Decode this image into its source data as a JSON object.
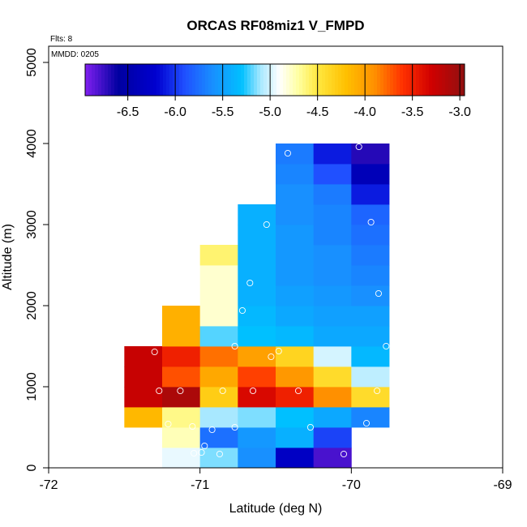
{
  "chart_data": {
    "type": "heatmap",
    "title": "ORCAS RF08miz1 V_FMPD",
    "annotations": {
      "flights": "Flts: 8",
      "date": "MMDD: 0205"
    },
    "xlabel": "Latitude (deg N)",
    "ylabel": "Altitude (m)",
    "xlim": [
      -72,
      -69
    ],
    "ylim": [
      0,
      5200
    ],
    "xticks": [
      -72,
      -71,
      -70,
      -69
    ],
    "xtick_labels": [
      "-72",
      "-71",
      "-70",
      "-69"
    ],
    "yticks": [
      0,
      1000,
      2000,
      3000,
      4000,
      5000
    ],
    "ytick_labels": [
      "0",
      "1000",
      "2000",
      "3000",
      "4000",
      "5000"
    ],
    "colorbar": {
      "range": [
        -6.95,
        -2.95
      ],
      "ticks": [
        -6.5,
        -6.0,
        -5.5,
        -5.0,
        -4.5,
        -4.0,
        -3.5,
        -3.0
      ],
      "tick_labels": [
        "-6.5",
        "-6.0",
        "-5.5",
        "-5.0",
        "-4.5",
        "-4.0",
        "-3.5",
        "-3.0"
      ],
      "stops": [
        [
          -6.95,
          "#8020f0"
        ],
        [
          -6.6,
          "#0000a0"
        ],
        [
          -6.2,
          "#0000d0"
        ],
        [
          -5.9,
          "#2050ff"
        ],
        [
          -5.6,
          "#1890ff"
        ],
        [
          -5.3,
          "#00c0ff"
        ],
        [
          -5.1,
          "#a8e8ff"
        ],
        [
          -4.9,
          "#ffffff"
        ],
        [
          -4.7,
          "#ffffa0"
        ],
        [
          -4.5,
          "#ffe840"
        ],
        [
          -4.2,
          "#ffc000"
        ],
        [
          -3.9,
          "#ff9000"
        ],
        [
          -3.6,
          "#ff3000"
        ],
        [
          -3.3,
          "#d00000"
        ],
        [
          -2.95,
          "#901010"
        ]
      ]
    },
    "x_bin_width": 0.25,
    "y_bin_height": 250,
    "cells": [
      {
        "lat": -71.125,
        "alt": 125,
        "value": -4.95
      },
      {
        "lat": -70.875,
        "alt": 125,
        "value": -5.15
      },
      {
        "lat": -70.625,
        "alt": 125,
        "value": -5.6
      },
      {
        "lat": -70.375,
        "alt": 125,
        "value": -6.3
      },
      {
        "lat": -70.125,
        "alt": 125,
        "value": -6.8
      },
      {
        "lat": -71.125,
        "alt": 375,
        "value": -4.75
      },
      {
        "lat": -70.875,
        "alt": 375,
        "value": -5.75
      },
      {
        "lat": -70.625,
        "alt": 375,
        "value": -5.55
      },
      {
        "lat": -70.375,
        "alt": 375,
        "value": -5.4
      },
      {
        "lat": -70.125,
        "alt": 375,
        "value": -5.95
      },
      {
        "lat": -71.375,
        "alt": 625,
        "value": -4.15
      },
      {
        "lat": -71.125,
        "alt": 625,
        "value": -4.65
      },
      {
        "lat": -70.875,
        "alt": 625,
        "value": -5.1
      },
      {
        "lat": -70.625,
        "alt": 625,
        "value": -5.15
      },
      {
        "lat": -70.375,
        "alt": 625,
        "value": -5.3
      },
      {
        "lat": -70.125,
        "alt": 625,
        "value": -5.45
      },
      {
        "lat": -69.875,
        "alt": 625,
        "value": -5.65
      },
      {
        "lat": -71.375,
        "alt": 875,
        "value": -3.25
      },
      {
        "lat": -71.125,
        "alt": 875,
        "value": -3.1
      },
      {
        "lat": -70.875,
        "alt": 875,
        "value": -4.3
      },
      {
        "lat": -70.625,
        "alt": 875,
        "value": -3.35
      },
      {
        "lat": -70.375,
        "alt": 875,
        "value": -3.5
      },
      {
        "lat": -70.125,
        "alt": 875,
        "value": -3.9
      },
      {
        "lat": -69.875,
        "alt": 875,
        "value": -4.4
      },
      {
        "lat": -71.375,
        "alt": 1125,
        "value": -3.25
      },
      {
        "lat": -71.125,
        "alt": 1125,
        "value": -3.7
      },
      {
        "lat": -70.875,
        "alt": 1125,
        "value": -4.05
      },
      {
        "lat": -70.625,
        "alt": 1125,
        "value": -3.65
      },
      {
        "lat": -70.375,
        "alt": 1125,
        "value": -3.95
      },
      {
        "lat": -70.125,
        "alt": 1125,
        "value": -4.4
      },
      {
        "lat": -69.875,
        "alt": 1125,
        "value": -5.05
      },
      {
        "lat": -71.375,
        "alt": 1375,
        "value": -3.25
      },
      {
        "lat": -71.125,
        "alt": 1375,
        "value": -3.5
      },
      {
        "lat": -70.875,
        "alt": 1375,
        "value": -3.8
      },
      {
        "lat": -70.625,
        "alt": 1375,
        "value": -4.0
      },
      {
        "lat": -70.375,
        "alt": 1375,
        "value": -4.35
      },
      {
        "lat": -70.125,
        "alt": 1375,
        "value": -5.0
      },
      {
        "lat": -69.875,
        "alt": 1375,
        "value": -5.35
      },
      {
        "lat": -71.125,
        "alt": 1625,
        "value": -4.1
      },
      {
        "lat": -70.875,
        "alt": 1625,
        "value": -5.2
      },
      {
        "lat": -70.625,
        "alt": 1625,
        "value": -5.3
      },
      {
        "lat": -70.375,
        "alt": 1625,
        "value": -5.35
      },
      {
        "lat": -70.125,
        "alt": 1625,
        "value": -5.45
      },
      {
        "lat": -69.875,
        "alt": 1625,
        "value": -5.45
      },
      {
        "lat": -71.125,
        "alt": 1875,
        "value": -4.1
      },
      {
        "lat": -70.875,
        "alt": 1875,
        "value": -4.8
      },
      {
        "lat": -70.625,
        "alt": 1875,
        "value": -5.35
      },
      {
        "lat": -70.375,
        "alt": 1875,
        "value": -5.45
      },
      {
        "lat": -70.125,
        "alt": 1875,
        "value": -5.5
      },
      {
        "lat": -69.875,
        "alt": 1875,
        "value": -5.5
      },
      {
        "lat": -70.875,
        "alt": 2125,
        "value": -4.8
      },
      {
        "lat": -70.625,
        "alt": 2125,
        "value": -5.4
      },
      {
        "lat": -70.375,
        "alt": 2125,
        "value": -5.5
      },
      {
        "lat": -70.125,
        "alt": 2125,
        "value": -5.55
      },
      {
        "lat": -69.875,
        "alt": 2125,
        "value": -5.6
      },
      {
        "lat": -70.875,
        "alt": 2375,
        "value": -4.8
      },
      {
        "lat": -70.625,
        "alt": 2375,
        "value": -5.4
      },
      {
        "lat": -70.375,
        "alt": 2375,
        "value": -5.55
      },
      {
        "lat": -70.125,
        "alt": 2375,
        "value": -5.6
      },
      {
        "lat": -69.875,
        "alt": 2375,
        "value": -5.65
      },
      {
        "lat": -70.875,
        "alt": 2625,
        "value": -4.6
      },
      {
        "lat": -70.625,
        "alt": 2625,
        "value": -5.4
      },
      {
        "lat": -70.375,
        "alt": 2625,
        "value": -5.55
      },
      {
        "lat": -70.125,
        "alt": 2625,
        "value": -5.6
      },
      {
        "lat": -69.875,
        "alt": 2625,
        "value": -5.7
      },
      {
        "lat": -70.625,
        "alt": 2875,
        "value": -5.4
      },
      {
        "lat": -70.375,
        "alt": 2875,
        "value": -5.55
      },
      {
        "lat": -70.125,
        "alt": 2875,
        "value": -5.65
      },
      {
        "lat": -69.875,
        "alt": 2875,
        "value": -5.75
      },
      {
        "lat": -70.625,
        "alt": 3125,
        "value": -5.4
      },
      {
        "lat": -70.375,
        "alt": 3125,
        "value": -5.6
      },
      {
        "lat": -70.125,
        "alt": 3125,
        "value": -5.65
      },
      {
        "lat": -69.875,
        "alt": 3125,
        "value": -5.8
      },
      {
        "lat": -70.375,
        "alt": 3375,
        "value": -5.6
      },
      {
        "lat": -70.125,
        "alt": 3375,
        "value": -5.7
      },
      {
        "lat": -69.875,
        "alt": 3375,
        "value": -6.1
      },
      {
        "lat": -70.375,
        "alt": 3625,
        "value": -5.65
      },
      {
        "lat": -70.125,
        "alt": 3625,
        "value": -5.9
      },
      {
        "lat": -69.875,
        "alt": 3625,
        "value": -6.4
      },
      {
        "lat": -70.375,
        "alt": 3875,
        "value": -5.7
      },
      {
        "lat": -70.125,
        "alt": 3875,
        "value": -6.1
      },
      {
        "lat": -69.875,
        "alt": 3875,
        "value": -6.7
      }
    ],
    "points": [
      {
        "lat": -70.42,
        "alt": 3880
      },
      {
        "lat": -69.95,
        "alt": 3960
      },
      {
        "lat": -70.56,
        "alt": 3000
      },
      {
        "lat": -69.87,
        "alt": 3030
      },
      {
        "lat": -70.67,
        "alt": 2280
      },
      {
        "lat": -69.82,
        "alt": 2150
      },
      {
        "lat": -70.72,
        "alt": 1940
      },
      {
        "lat": -69.77,
        "alt": 1500
      },
      {
        "lat": -71.3,
        "alt": 1430
      },
      {
        "lat": -70.77,
        "alt": 1500
      },
      {
        "lat": -70.53,
        "alt": 1370
      },
      {
        "lat": -70.48,
        "alt": 1440
      },
      {
        "lat": -71.27,
        "alt": 950
      },
      {
        "lat": -71.13,
        "alt": 950
      },
      {
        "lat": -70.85,
        "alt": 950
      },
      {
        "lat": -70.65,
        "alt": 950
      },
      {
        "lat": -70.35,
        "alt": 950
      },
      {
        "lat": -69.83,
        "alt": 950
      },
      {
        "lat": -71.21,
        "alt": 540
      },
      {
        "lat": -71.05,
        "alt": 510
      },
      {
        "lat": -70.92,
        "alt": 470
      },
      {
        "lat": -70.77,
        "alt": 500
      },
      {
        "lat": -70.27,
        "alt": 500
      },
      {
        "lat": -69.9,
        "alt": 550
      },
      {
        "lat": -70.97,
        "alt": 270
      },
      {
        "lat": -71.04,
        "alt": 180
      },
      {
        "lat": -70.99,
        "alt": 190
      },
      {
        "lat": -70.87,
        "alt": 170
      },
      {
        "lat": -70.05,
        "alt": 170
      }
    ]
  }
}
